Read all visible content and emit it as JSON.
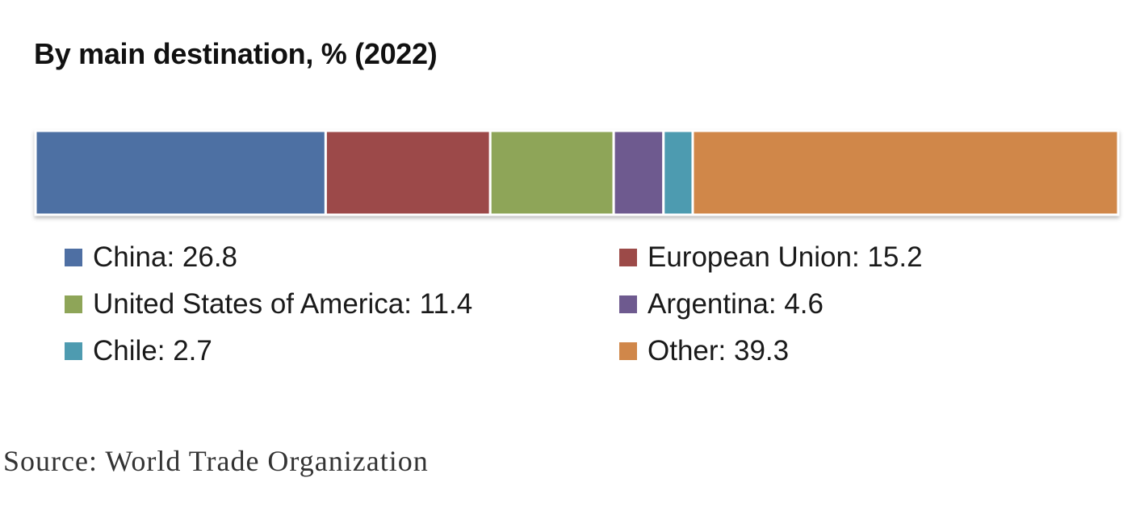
{
  "title": "By main destination, % (2022)",
  "source": "Source: World Trade Organization",
  "chart_data": {
    "type": "bar",
    "subtype": "stacked-horizontal-100",
    "title": "By main destination, % (2022)",
    "series": [
      {
        "name": "China",
        "value": 26.8,
        "color": "#4e6fa3",
        "label": "China: 26.8"
      },
      {
        "name": "European Union",
        "value": 15.2,
        "color": "#9c4a48",
        "label": "European Union: 15.2"
      },
      {
        "name": "United States of America",
        "value": 11.4,
        "color": "#8ea558",
        "label": "United States of America: 11.4"
      },
      {
        "name": "Argentina",
        "value": 4.6,
        "color": "#6e5a8f",
        "label": "Argentina: 4.6"
      },
      {
        "name": "Chile",
        "value": 2.7,
        "color": "#4e9bb0",
        "label": "Chile: 2.7"
      },
      {
        "name": "Other",
        "value": 39.3,
        "color": "#d0874a",
        "label": "Other: 39.3"
      }
    ],
    "total": 100,
    "legend_position": "bottom",
    "grid": false
  }
}
